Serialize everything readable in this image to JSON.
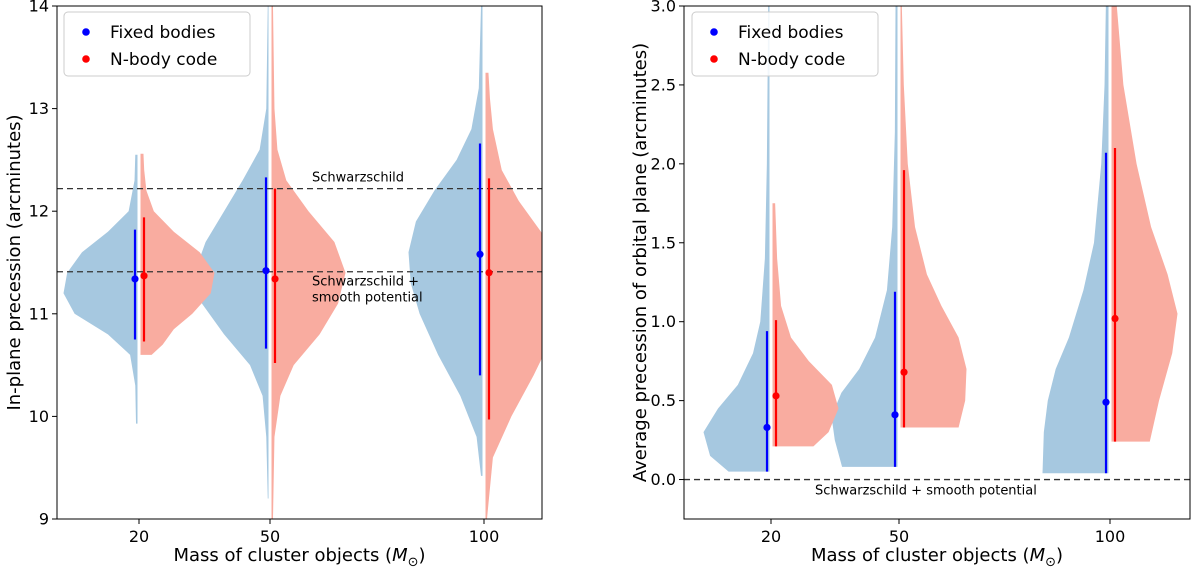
{
  "colors": {
    "fixed_marker": "#0000ff",
    "nbody_marker": "#ff0000",
    "fixed_fill": "#a6c8e0",
    "nbody_fill": "#f9aca0",
    "reference_line": "#333333"
  },
  "chart_data": [
    {
      "type": "violin",
      "xlabel_text": "Mass of cluster objects (",
      "xlabel_symbol": "M",
      "xlabel_subscript": "⊙",
      "xlabel_close": ")",
      "ylabel": "In-plane precession (arcminutes)",
      "categories": [
        "20",
        "50",
        "100"
      ],
      "ylim": [
        9,
        14
      ],
      "yticks": [
        "9",
        "10",
        "11",
        "12",
        "13",
        "14"
      ],
      "grid": false,
      "legend_placement": "top-left",
      "series": [
        {
          "name": "Fixed bodies",
          "color": "#0000ff",
          "side": "left",
          "points": [
            {
              "category": "20",
              "median": 11.34,
              "low": 10.75,
              "high": 11.82,
              "violin": [
                [
                  9.93,
                  0.02
                ],
                [
                  10.3,
                  0.03
                ],
                [
                  10.6,
                  0.1
                ],
                [
                  10.8,
                  0.4
                ],
                [
                  11.0,
                  0.85
                ],
                [
                  11.2,
                  1.0
                ],
                [
                  11.4,
                  0.95
                ],
                [
                  11.6,
                  0.75
                ],
                [
                  11.8,
                  0.4
                ],
                [
                  12.0,
                  0.12
                ],
                [
                  12.3,
                  0.04
                ],
                [
                  12.55,
                  0.03
                ]
              ]
            },
            {
              "category": "50",
              "median": 11.42,
              "low": 10.66,
              "high": 12.33,
              "violin": [
                [
                  9.2,
                  0.01
                ],
                [
                  9.8,
                  0.03
                ],
                [
                  10.2,
                  0.08
                ],
                [
                  10.5,
                  0.25
                ],
                [
                  10.8,
                  0.6
                ],
                [
                  11.1,
                  0.9
                ],
                [
                  11.4,
                  1.0
                ],
                [
                  11.7,
                  0.85
                ],
                [
                  12.0,
                  0.6
                ],
                [
                  12.3,
                  0.35
                ],
                [
                  12.6,
                  0.12
                ],
                [
                  13.0,
                  0.03
                ],
                [
                  14.0,
                  0.01
                ]
              ]
            },
            {
              "category": "100",
              "median": 11.58,
              "low": 10.4,
              "high": 12.66,
              "violin": [
                [
                  9.42,
                  0.02
                ],
                [
                  9.8,
                  0.08
                ],
                [
                  10.2,
                  0.3
                ],
                [
                  10.6,
                  0.6
                ],
                [
                  11.0,
                  0.85
                ],
                [
                  11.3,
                  0.97
                ],
                [
                  11.6,
                  1.0
                ],
                [
                  11.9,
                  0.9
                ],
                [
                  12.2,
                  0.65
                ],
                [
                  12.5,
                  0.35
                ],
                [
                  12.8,
                  0.15
                ],
                [
                  13.2,
                  0.05
                ],
                [
                  14.0,
                  0.02
                ]
              ]
            }
          ]
        },
        {
          "name": "N-body code",
          "color": "#ff0000",
          "side": "right",
          "points": [
            {
              "category": "20",
              "median": 11.37,
              "low": 10.73,
              "high": 11.94,
              "violin": [
                [
                  10.6,
                  0.15
                ],
                [
                  10.7,
                  0.3
                ],
                [
                  10.85,
                  0.45
                ],
                [
                  11.0,
                  0.7
                ],
                [
                  11.2,
                  0.95
                ],
                [
                  11.4,
                  1.0
                ],
                [
                  11.6,
                  0.8
                ],
                [
                  11.8,
                  0.45
                ],
                [
                  12.0,
                  0.18
                ],
                [
                  12.2,
                  0.08
                ],
                [
                  12.4,
                  0.05
                ],
                [
                  12.56,
                  0.04
                ]
              ]
            },
            {
              "category": "50",
              "median": 11.34,
              "low": 10.52,
              "high": 12.22,
              "violin": [
                [
                  9.0,
                  0.02
                ],
                [
                  9.8,
                  0.04
                ],
                [
                  10.2,
                  0.12
                ],
                [
                  10.5,
                  0.3
                ],
                [
                  10.8,
                  0.65
                ],
                [
                  11.1,
                  0.9
                ],
                [
                  11.4,
                  1.0
                ],
                [
                  11.7,
                  0.85
                ],
                [
                  12.0,
                  0.5
                ],
                [
                  12.3,
                  0.2
                ],
                [
                  12.6,
                  0.08
                ],
                [
                  13.0,
                  0.04
                ],
                [
                  14.0,
                  0.02
                ]
              ]
            },
            {
              "category": "100",
              "median": 11.4,
              "low": 9.97,
              "high": 12.32,
              "violin": [
                [
                  9.0,
                  0.02
                ],
                [
                  9.6,
                  0.1
                ],
                [
                  10.0,
                  0.35
                ],
                [
                  10.4,
                  0.65
                ],
                [
                  10.8,
                  0.92
                ],
                [
                  11.2,
                  1.0
                ],
                [
                  11.5,
                  0.97
                ],
                [
                  11.8,
                  0.75
                ],
                [
                  12.1,
                  0.45
                ],
                [
                  12.4,
                  0.22
                ],
                [
                  12.8,
                  0.1
                ],
                [
                  13.1,
                  0.06
                ],
                [
                  13.35,
                  0.04
                ]
              ]
            }
          ]
        }
      ],
      "reference_lines": [
        {
          "y": 12.22,
          "label": "Schwarzschild"
        },
        {
          "y": 11.41,
          "label": "Schwarzschild +",
          "label2": "smooth potential"
        }
      ]
    },
    {
      "type": "violin",
      "xlabel_text": "Mass of cluster objects (",
      "xlabel_symbol": "M",
      "xlabel_subscript": "⊙",
      "xlabel_close": ")",
      "ylabel": "Average precession of orbital plane (arcminutes)",
      "categories": [
        "20",
        "50",
        "100"
      ],
      "ylim": [
        -0.25,
        3.0
      ],
      "yticks": [
        "0.0",
        "0.5",
        "1.0",
        "1.5",
        "2.0",
        "2.5",
        "3.0"
      ],
      "grid": false,
      "legend_placement": "top-left",
      "series": [
        {
          "name": "Fixed bodies",
          "color": "#0000ff",
          "side": "left",
          "points": [
            {
              "category": "20",
              "median": 0.33,
              "low": 0.05,
              "high": 0.94,
              "violin": [
                [
                  0.05,
                  0.62
                ],
                [
                  0.15,
                  0.9
                ],
                [
                  0.3,
                  1.0
                ],
                [
                  0.45,
                  0.78
                ],
                [
                  0.6,
                  0.48
                ],
                [
                  0.8,
                  0.25
                ],
                [
                  1.0,
                  0.14
                ],
                [
                  1.4,
                  0.07
                ],
                [
                  2.0,
                  0.04
                ],
                [
                  3.0,
                  0.02
                ]
              ]
            },
            {
              "category": "50",
              "median": 0.41,
              "low": 0.08,
              "high": 1.19,
              "violin": [
                [
                  0.08,
                  0.84
                ],
                [
                  0.25,
                  0.95
                ],
                [
                  0.4,
                  1.0
                ],
                [
                  0.55,
                  0.85
                ],
                [
                  0.7,
                  0.58
                ],
                [
                  0.9,
                  0.34
                ],
                [
                  1.2,
                  0.16
                ],
                [
                  1.6,
                  0.08
                ],
                [
                  2.2,
                  0.04
                ],
                [
                  3.0,
                  0.03
                ]
              ]
            },
            {
              "category": "100",
              "median": 0.49,
              "low": 0.04,
              "high": 2.07,
              "violin": [
                [
                  0.04,
                  1.0
                ],
                [
                  0.3,
                  0.98
                ],
                [
                  0.5,
                  0.92
                ],
                [
                  0.7,
                  0.8
                ],
                [
                  0.9,
                  0.6
                ],
                [
                  1.2,
                  0.38
                ],
                [
                  1.5,
                  0.22
                ],
                [
                  2.0,
                  0.11
                ],
                [
                  2.5,
                  0.06
                ],
                [
                  3.0,
                  0.04
                ]
              ]
            }
          ]
        },
        {
          "name": "N-body code",
          "color": "#ff0000",
          "side": "right",
          "points": [
            {
              "category": "20",
              "median": 0.53,
              "low": 0.21,
              "high": 1.01,
              "violin": [
                [
                  0.21,
                  0.62
                ],
                [
                  0.3,
                  0.85
                ],
                [
                  0.45,
                  1.0
                ],
                [
                  0.6,
                  0.9
                ],
                [
                  0.75,
                  0.55
                ],
                [
                  0.9,
                  0.28
                ],
                [
                  1.1,
                  0.13
                ],
                [
                  1.4,
                  0.07
                ],
                [
                  1.75,
                  0.04
                ]
              ]
            },
            {
              "category": "50",
              "median": 0.68,
              "low": 0.33,
              "high": 1.96,
              "violin": [
                [
                  0.33,
                  0.88
                ],
                [
                  0.5,
                  0.98
                ],
                [
                  0.7,
                  1.0
                ],
                [
                  0.9,
                  0.88
                ],
                [
                  1.1,
                  0.62
                ],
                [
                  1.3,
                  0.4
                ],
                [
                  1.6,
                  0.22
                ],
                [
                  2.0,
                  0.11
                ],
                [
                  2.5,
                  0.05
                ],
                [
                  3.0,
                  0.02
                ]
              ]
            },
            {
              "category": "100",
              "median": 1.02,
              "low": 0.24,
              "high": 2.1,
              "violin": [
                [
                  0.24,
                  0.58
                ],
                [
                  0.5,
                  0.72
                ],
                [
                  0.8,
                  0.92
                ],
                [
                  1.05,
                  1.0
                ],
                [
                  1.3,
                  0.85
                ],
                [
                  1.6,
                  0.6
                ],
                [
                  2.0,
                  0.38
                ],
                [
                  2.5,
                  0.18
                ],
                [
                  3.0,
                  0.08
                ]
              ]
            }
          ]
        }
      ],
      "reference_lines": [
        {
          "y": 0.0,
          "label": "Schwarzschild + smooth potential"
        }
      ]
    }
  ]
}
